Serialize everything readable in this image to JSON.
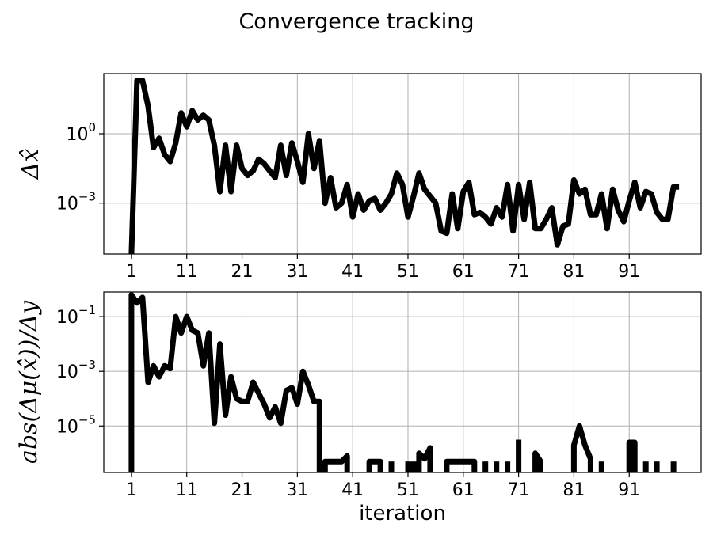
{
  "chart_data": {
    "type": "line",
    "title": "Convergence tracking",
    "xlabel": "iteration",
    "xticks": [
      1,
      11,
      21,
      31,
      41,
      51,
      61,
      71,
      81,
      91
    ],
    "xlim": [
      -4,
      104
    ],
    "subplots": [
      {
        "ylabel": "Δx̂",
        "yscale": "log",
        "ylim_log10": [
          -5.2,
          2.6
        ],
        "yticks_log10": [
          0,
          -3
        ],
        "grid": true,
        "series": [
          {
            "x": [
              1,
              2,
              3,
              4,
              5,
              6,
              7,
              8,
              9,
              10,
              11,
              12,
              13,
              14,
              15,
              16,
              17,
              18,
              19,
              20,
              21,
              22,
              23,
              24,
              25,
              26,
              27,
              28,
              29,
              30,
              31,
              32,
              33,
              34,
              35,
              36,
              37,
              38,
              39,
              40,
              41,
              42,
              43,
              44,
              45,
              46,
              47,
              48,
              49,
              50,
              51,
              52,
              53,
              54,
              55,
              56,
              57,
              58,
              59,
              60,
              61,
              62,
              63,
              64,
              65,
              66,
              67,
              68,
              69,
              70,
              71,
              72,
              73,
              74,
              75,
              76,
              77,
              78,
              79,
              80,
              81,
              82,
              83,
              84,
              85,
              86,
              87,
              88,
              89,
              90,
              91,
              92,
              93,
              94,
              95,
              96,
              97,
              98,
              99,
              100
            ],
            "log10_values": [
              -5.2,
              2.3,
              2.3,
              1.2,
              -0.6,
              -0.2,
              -0.9,
              -1.2,
              -0.4,
              0.9,
              0.3,
              1.0,
              0.6,
              0.8,
              0.6,
              -0.5,
              -2.5,
              -0.5,
              -2.5,
              -0.5,
              -1.5,
              -1.8,
              -1.6,
              -1.1,
              -1.3,
              -1.6,
              -1.9,
              -0.5,
              -1.8,
              -0.4,
              -1.2,
              -2.1,
              0.0,
              -1.5,
              -0.3,
              -3.0,
              -1.9,
              -3.2,
              -3.0,
              -2.2,
              -3.6,
              -2.6,
              -3.3,
              -2.9,
              -2.8,
              -3.3,
              -3.0,
              -2.6,
              -1.7,
              -2.2,
              -3.6,
              -2.7,
              -1.7,
              -2.4,
              -2.7,
              -3.0,
              -4.2,
              -4.3,
              -2.6,
              -4.1,
              -2.5,
              -2.1,
              -3.5,
              -3.4,
              -3.6,
              -3.9,
              -3.2,
              -3.6,
              -2.2,
              -4.2,
              -2.2,
              -3.7,
              -2.1,
              -4.1,
              -4.1,
              -3.7,
              -3.2,
              -4.8,
              -4.0,
              -3.9,
              -2.0,
              -2.6,
              -2.4,
              -3.5,
              -3.5,
              -2.6,
              -4.1,
              -2.4,
              -3.3,
              -3.8,
              -2.9,
              -2.1,
              -3.2,
              -2.5,
              -2.6,
              -3.4,
              -3.7,
              -3.7,
              -2.3,
              -2.3
            ]
          }
        ]
      },
      {
        "ylabel": "abs(Δμ(x̂))/Δy",
        "yscale": "log",
        "ylim_log10": [
          -6.7,
          -0.1
        ],
        "yticks_log10": [
          -1,
          -3,
          -5
        ],
        "grid": true,
        "series": [
          {
            "x": [
              1,
              1,
              2,
              3,
              4,
              5,
              6,
              7,
              8,
              9,
              10,
              11,
              12,
              13,
              14,
              15,
              16,
              17,
              18,
              19,
              20,
              21,
              22,
              23,
              24,
              25,
              26,
              27,
              28,
              29,
              30,
              31,
              32,
              33,
              34,
              35,
              35,
              36,
              36,
              37,
              38,
              39,
              40,
              40
            ],
            "log10_values": [
              -6.7,
              -0.2,
              -0.5,
              -0.3,
              -3.4,
              -2.8,
              -3.2,
              -2.8,
              -2.9,
              -1.0,
              -1.6,
              -1.0,
              -1.5,
              -1.6,
              -2.8,
              -1.6,
              -4.9,
              -2.0,
              -4.6,
              -3.2,
              -4.0,
              -4.1,
              -4.1,
              -3.4,
              -3.8,
              -4.2,
              -4.7,
              -4.3,
              -4.9,
              -3.7,
              -3.6,
              -4.2,
              -3.0,
              -3.5,
              -4.1,
              -4.1,
              -6.7,
              -6.7,
              -6.3,
              -6.3,
              -6.3,
              -6.3,
              -6.1,
              -6.7
            ]
          },
          {
            "segments": [
              {
                "x": [
                  44,
                  44,
                  46,
                  46
                ],
                "log10_values": [
                  -6.7,
                  -6.3,
                  -6.3,
                  -6.7
                ]
              },
              {
                "x": [
                  48,
                  48
                ],
                "log10_values": [
                  -6.7,
                  -6.3
                ]
              },
              {
                "x": [
                  51,
                  51
                ],
                "log10_values": [
                  -6.7,
                  -6.3
                ]
              },
              {
                "x": [
                  52,
                  52
                ],
                "log10_values": [
                  -6.7,
                  -6.3
                ]
              },
              {
                "x": [
                  53,
                  53,
                  54,
                  55,
                  55
                ],
                "log10_values": [
                  -6.7,
                  -6.0,
                  -6.2,
                  -5.8,
                  -6.7
                ]
              },
              {
                "x": [
                  58,
                  58,
                  63,
                  63
                ],
                "log10_values": [
                  -6.7,
                  -6.3,
                  -6.3,
                  -6.7
                ]
              },
              {
                "x": [
                  65,
                  65
                ],
                "log10_values": [
                  -6.7,
                  -6.3
                ]
              },
              {
                "x": [
                  67,
                  67
                ],
                "log10_values": [
                  -6.7,
                  -6.3
                ]
              },
              {
                "x": [
                  69,
                  69
                ],
                "log10_values": [
                  -6.7,
                  -6.3
                ]
              },
              {
                "x": [
                  71,
                  71
                ],
                "log10_values": [
                  -6.7,
                  -5.5
                ]
              },
              {
                "x": [
                  74,
                  74,
                  75,
                  75
                ],
                "log10_values": [
                  -6.7,
                  -6.0,
                  -6.3,
                  -6.7
                ]
              },
              {
                "x": [
                  81,
                  81,
                  82,
                  83,
                  84,
                  84
                ],
                "log10_values": [
                  -6.7,
                  -5.7,
                  -5.0,
                  -5.7,
                  -6.2,
                  -6.7
                ]
              },
              {
                "x": [
                  86,
                  86
                ],
                "log10_values": [
                  -6.7,
                  -6.3
                ]
              },
              {
                "x": [
                  91,
                  91,
                  92,
                  92
                ],
                "log10_values": [
                  -6.7,
                  -5.6,
                  -5.6,
                  -6.7
                ]
              },
              {
                "x": [
                  94,
                  94
                ],
                "log10_values": [
                  -6.7,
                  -6.3
                ]
              },
              {
                "x": [
                  96,
                  96
                ],
                "log10_values": [
                  -6.7,
                  -6.3
                ]
              },
              {
                "x": [
                  99,
                  99
                ],
                "log10_values": [
                  -6.7,
                  -6.3
                ]
              }
            ]
          }
        ]
      }
    ]
  }
}
